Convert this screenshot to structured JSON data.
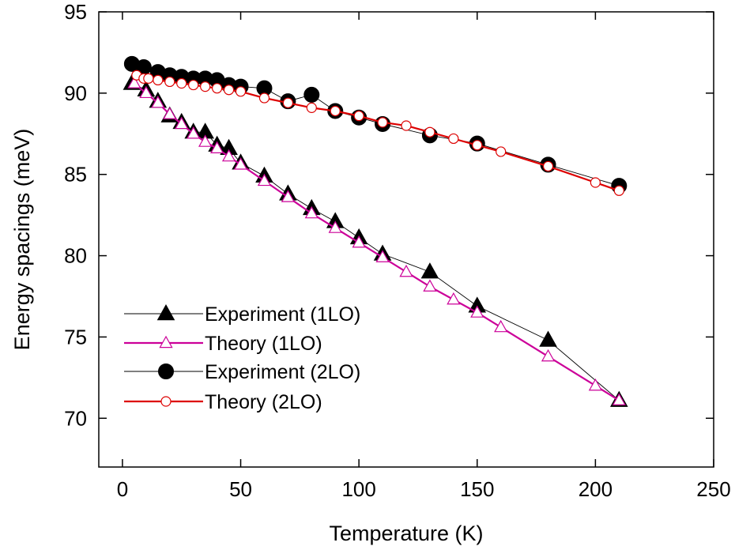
{
  "chart_data": {
    "type": "line",
    "title": "",
    "xlabel": "Temperature (K)",
    "ylabel": "Energy spacings (meV)",
    "xlim": [
      -10,
      250
    ],
    "ylim": [
      67,
      95
    ],
    "xticks": [
      0,
      50,
      100,
      150,
      200,
      250
    ],
    "yticks": [
      70,
      75,
      80,
      85,
      90,
      95
    ],
    "grid": false,
    "legend_position": "bottom-left",
    "series": [
      {
        "name": "Experiment (1LO)",
        "marker": "triangle-filled",
        "line_color": "#000000",
        "marker_fill": "#000000",
        "x": [
          4,
          10,
          15,
          20,
          25,
          30,
          35,
          40,
          45,
          50,
          60,
          70,
          80,
          90,
          100,
          110,
          130,
          150,
          180,
          210
        ],
        "y": [
          90.6,
          90.2,
          89.5,
          88.6,
          88.2,
          87.6,
          87.6,
          86.8,
          86.6,
          85.7,
          84.9,
          83.8,
          82.9,
          82.1,
          81.1,
          80.1,
          79.0,
          76.9,
          74.8,
          71.1
        ]
      },
      {
        "name": "Theory (1LO)",
        "marker": "triangle-open",
        "line_color": "#cc0099",
        "marker_fill": "#ffffff",
        "x": [
          5,
          10,
          15,
          20,
          25,
          30,
          35,
          40,
          45,
          50,
          60,
          70,
          80,
          90,
          100,
          110,
          120,
          130,
          140,
          150,
          160,
          180,
          200,
          210
        ],
        "y": [
          90.6,
          90.0,
          89.4,
          88.7,
          88.1,
          87.5,
          87.0,
          86.6,
          86.1,
          85.6,
          84.6,
          83.6,
          82.6,
          81.7,
          80.8,
          79.9,
          79.0,
          78.1,
          77.3,
          76.5,
          75.6,
          73.8,
          72.0,
          71.1
        ]
      },
      {
        "name": "Experiment (2LO)",
        "marker": "circle-filled",
        "line_color": "#000000",
        "marker_fill": "#000000",
        "x": [
          4,
          9,
          15,
          20,
          25,
          30,
          35,
          40,
          45,
          50,
          60,
          70,
          80,
          90,
          100,
          110,
          130,
          150,
          180,
          210
        ],
        "y": [
          91.8,
          91.6,
          91.3,
          91.1,
          91.0,
          90.9,
          90.9,
          90.8,
          90.5,
          90.4,
          90.3,
          89.5,
          89.9,
          88.9,
          88.5,
          88.1,
          87.4,
          86.9,
          85.6,
          84.3
        ]
      },
      {
        "name": "Theory (2LO)",
        "marker": "circle-open",
        "line_color": "#dd0000",
        "marker_fill": "#ffffff",
        "x": [
          6,
          9,
          11,
          15,
          20,
          25,
          30,
          35,
          40,
          45,
          50,
          60,
          70,
          80,
          90,
          100,
          110,
          120,
          130,
          140,
          150,
          160,
          180,
          200,
          210
        ],
        "y": [
          91.1,
          90.9,
          90.9,
          90.8,
          90.7,
          90.6,
          90.5,
          90.4,
          90.3,
          90.2,
          90.1,
          89.7,
          89.4,
          89.1,
          88.9,
          88.6,
          88.2,
          88.0,
          87.6,
          87.2,
          86.8,
          86.4,
          85.5,
          84.5,
          84.0
        ]
      }
    ]
  }
}
